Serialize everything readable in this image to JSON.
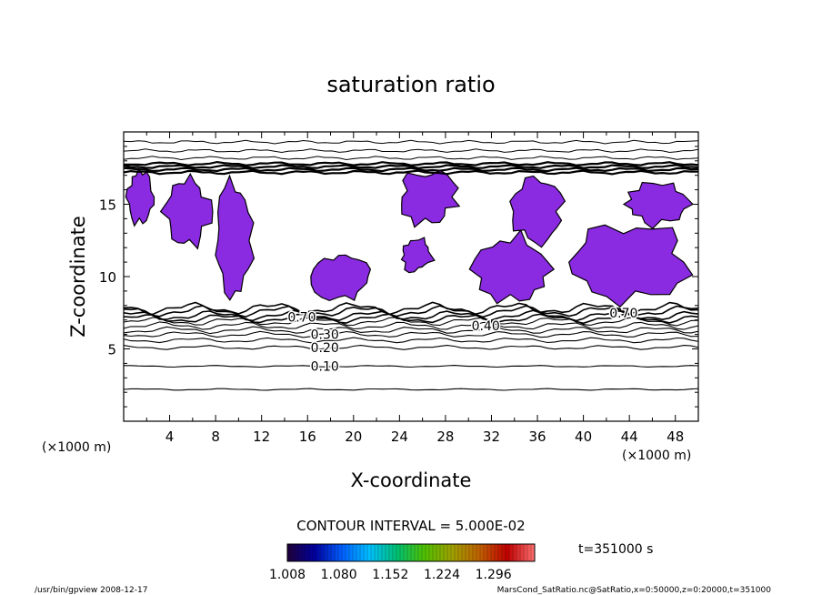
{
  "chart_data": {
    "type": "contour",
    "title": "saturation ratio",
    "xlabel": "X-coordinate",
    "ylabel": "Z-coordinate",
    "x_unit_left": "(×1000 m)",
    "x_unit_right": "(×1000 m)",
    "xlim": [
      0,
      50
    ],
    "ylim": [
      0,
      20
    ],
    "xticks": [
      4,
      8,
      12,
      16,
      20,
      24,
      28,
      32,
      36,
      40,
      44,
      48
    ],
    "yticks": [
      5,
      10,
      15
    ],
    "contour_interval_text": "CONTOUR INTERVAL = 5.000E-02",
    "contour_labels": [
      {
        "text": "0.10",
        "x": 17.5,
        "y": 3.8
      },
      {
        "text": "0.20",
        "x": 17.5,
        "y": 5.1
      },
      {
        "text": "0.30",
        "x": 17.5,
        "y": 6.0
      },
      {
        "text": "0.40",
        "x": 31.5,
        "y": 6.6
      },
      {
        "text": "0.70",
        "x": 43.5,
        "y": 7.5
      },
      {
        "text": "0.70",
        "x": 15.5,
        "y": 7.2
      }
    ],
    "contour_levels": [
      2.2,
      3.8,
      5.1,
      5.6,
      6.0,
      6.3,
      6.6,
      6.9,
      7.1,
      7.3,
      7.6,
      7.8
    ],
    "upper_contour_levels": [
      17.2,
      17.4,
      17.6,
      17.8,
      18.2,
      18.7,
      19.3
    ],
    "supersaturated_regions": [
      {
        "x": 1.5,
        "z": 15.5,
        "w": 2.5,
        "h": 4.0
      },
      {
        "x": 5.5,
        "z": 14.5,
        "w": 4.0,
        "h": 5.0
      },
      {
        "x": 9.5,
        "z": 12.5,
        "w": 3.5,
        "h": 8.0
      },
      {
        "x": 19.0,
        "z": 10.0,
        "w": 5.0,
        "h": 3.5
      },
      {
        "x": 26.5,
        "z": 15.5,
        "w": 5.0,
        "h": 4.0
      },
      {
        "x": 25.5,
        "z": 11.5,
        "w": 3.0,
        "h": 2.5
      },
      {
        "x": 34.0,
        "z": 10.5,
        "w": 7.0,
        "h": 5.0
      },
      {
        "x": 36.0,
        "z": 14.5,
        "w": 4.5,
        "h": 4.5
      },
      {
        "x": 44.0,
        "z": 11.0,
        "w": 10.0,
        "h": 5.5
      },
      {
        "x": 46.5,
        "z": 15.0,
        "w": 6.0,
        "h": 3.0
      }
    ],
    "colorbar": {
      "tick_labels": [
        "1.008",
        "1.080",
        "1.152",
        "1.224",
        "1.296"
      ],
      "range": [
        1.008,
        1.332
      ],
      "colors": [
        "#20003a",
        "#0000a0",
        "#0060ff",
        "#00c0ff",
        "#00c070",
        "#50c000",
        "#a0a000",
        "#c06000",
        "#c00000",
        "#ff7070"
      ]
    },
    "time_label": "t=351000 s",
    "colors": {
      "supersaturated": "#8a2be2",
      "contour": "#000000"
    }
  },
  "footer": {
    "left": "/usr/bin/gpview  2008-12-17",
    "right": "MarsCond_SatRatio.nc@SatRatio,x=0:50000,z=0:20000,t=351000"
  }
}
